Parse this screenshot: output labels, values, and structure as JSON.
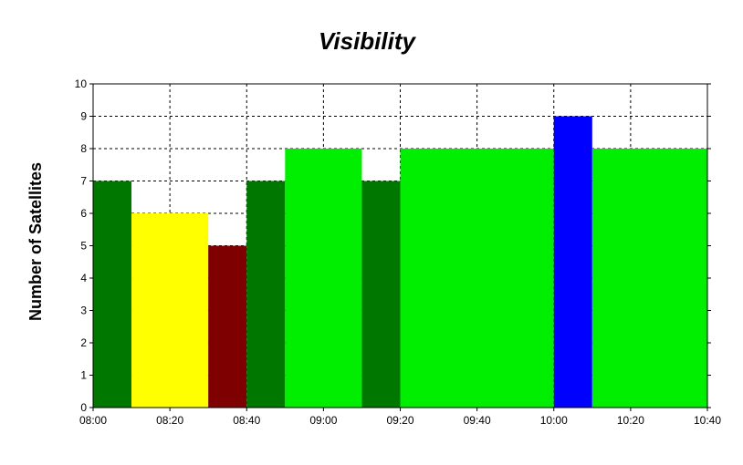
{
  "chart_data": {
    "type": "bar",
    "title": "Visibility",
    "xlabel": "",
    "ylabel": "Number of Satellites",
    "x_unit": "time (HH:MM)",
    "xlim": [
      "08:00",
      "10:40"
    ],
    "ylim": [
      0,
      10
    ],
    "x_ticks": [
      "08:00",
      "08:20",
      "08:40",
      "09:00",
      "09:20",
      "09:40",
      "10:00",
      "10:20",
      "10:40"
    ],
    "y_ticks": [
      0,
      1,
      2,
      3,
      4,
      5,
      6,
      7,
      8,
      9,
      10
    ],
    "grid": true,
    "legend": "none",
    "bars": [
      {
        "start": "08:00",
        "end": "08:10",
        "value": 7,
        "color": "#007800"
      },
      {
        "start": "08:10",
        "end": "08:30",
        "value": 6,
        "color": "#ffff00"
      },
      {
        "start": "08:30",
        "end": "08:40",
        "value": 5,
        "color": "#7f0000"
      },
      {
        "start": "08:40",
        "end": "08:50",
        "value": 7,
        "color": "#007800"
      },
      {
        "start": "08:50",
        "end": "09:10",
        "value": 8,
        "color": "#00ee00"
      },
      {
        "start": "09:10",
        "end": "09:20",
        "value": 7,
        "color": "#007800"
      },
      {
        "start": "09:20",
        "end": "10:00",
        "value": 8,
        "color": "#00ee00"
      },
      {
        "start": "10:00",
        "end": "10:10",
        "value": 9,
        "color": "#0000ff"
      },
      {
        "start": "10:10",
        "end": "10:40",
        "value": 8,
        "color": "#00ee00"
      }
    ]
  }
}
